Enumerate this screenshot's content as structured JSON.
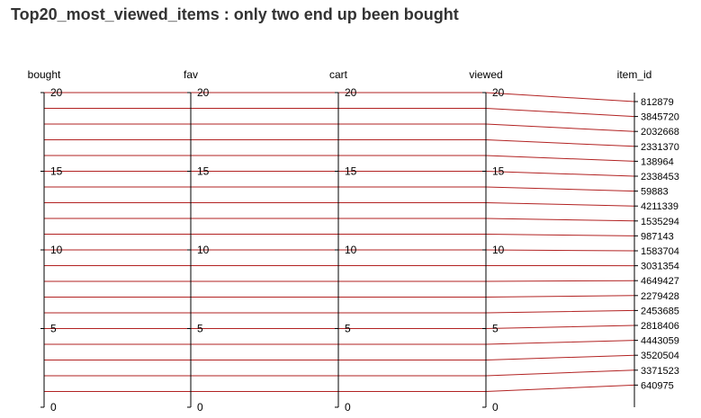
{
  "chart_data": {
    "type": "parallel_coordinates",
    "title": "Top20_most_viewed_items : only two end up been bought",
    "dimensions": [
      "bought",
      "fav",
      "cart",
      "viewed",
      "item_id"
    ],
    "numeric_axis_range": [
      0,
      20
    ],
    "numeric_ticks": [
      0,
      5,
      10,
      15,
      20
    ],
    "item_id_categories": [
      "812879",
      "3845720",
      "2032668",
      "2331370",
      "138964",
      "2338453",
      "59883",
      "4211339",
      "1535294",
      "987143",
      "1583704",
      "3031354",
      "4649427",
      "2279428",
      "2453685",
      "2818406",
      "4443059",
      "3520504",
      "3371523",
      "640975"
    ],
    "line_color": "#b22222",
    "grid": false,
    "rows": [
      {
        "item_id": "812879",
        "bought": 20,
        "fav": 20,
        "cart": 20,
        "viewed": 20
      },
      {
        "item_id": "3845720",
        "bought": 19,
        "fav": 19,
        "cart": 19,
        "viewed": 19
      },
      {
        "item_id": "2032668",
        "bought": 18,
        "fav": 18,
        "cart": 18,
        "viewed": 18
      },
      {
        "item_id": "2331370",
        "bought": 17,
        "fav": 17,
        "cart": 17,
        "viewed": 17
      },
      {
        "item_id": "138964",
        "bought": 16,
        "fav": 16,
        "cart": 16,
        "viewed": 16
      },
      {
        "item_id": "2338453",
        "bought": 15,
        "fav": 15,
        "cart": 15,
        "viewed": 15
      },
      {
        "item_id": "59883",
        "bought": 14,
        "fav": 14,
        "cart": 14,
        "viewed": 14
      },
      {
        "item_id": "4211339",
        "bought": 13,
        "fav": 13,
        "cart": 13,
        "viewed": 13
      },
      {
        "item_id": "1535294",
        "bought": 12,
        "fav": 12,
        "cart": 12,
        "viewed": 12
      },
      {
        "item_id": "987143",
        "bought": 11,
        "fav": 11,
        "cart": 11,
        "viewed": 11
      },
      {
        "item_id": "1583704",
        "bought": 10,
        "fav": 10,
        "cart": 10,
        "viewed": 10
      },
      {
        "item_id": "3031354",
        "bought": 9,
        "fav": 9,
        "cart": 9,
        "viewed": 9
      },
      {
        "item_id": "4649427",
        "bought": 8,
        "fav": 8,
        "cart": 8,
        "viewed": 8
      },
      {
        "item_id": "2279428",
        "bought": 7,
        "fav": 7,
        "cart": 7,
        "viewed": 7
      },
      {
        "item_id": "2453685",
        "bought": 6,
        "fav": 6,
        "cart": 6,
        "viewed": 6
      },
      {
        "item_id": "2818406",
        "bought": 5,
        "fav": 5,
        "cart": 5,
        "viewed": 5
      },
      {
        "item_id": "4443059",
        "bought": 4,
        "fav": 4,
        "cart": 4,
        "viewed": 4
      },
      {
        "item_id": "3520504",
        "bought": 3,
        "fav": 3,
        "cart": 3,
        "viewed": 3
      },
      {
        "item_id": "3371523",
        "bought": 2,
        "fav": 2,
        "cart": 2,
        "viewed": 2
      },
      {
        "item_id": "640975",
        "bought": 1,
        "fav": 1,
        "cart": 1,
        "viewed": 1
      }
    ]
  }
}
